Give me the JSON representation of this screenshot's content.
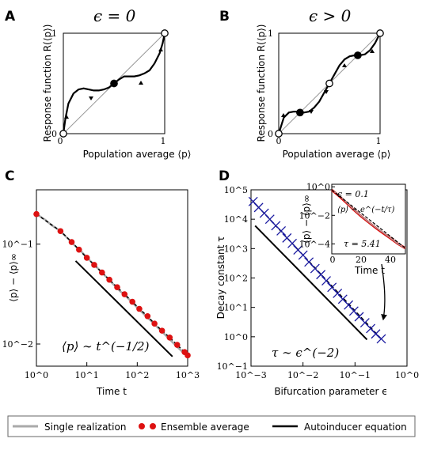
{
  "panels": {
    "A": {
      "letter": "A",
      "title": "ϵ = 0",
      "xlabel": "Population average ⟨p⟩",
      "ylabel": "Response function R(⟨p⟩)",
      "xticks": [
        "0",
        "1"
      ],
      "yticks": [
        "0",
        "1"
      ]
    },
    "B": {
      "letter": "B",
      "title": "ϵ > 0",
      "xlabel": "Population average ⟨p⟩",
      "ylabel": "Response function R(⟨p⟩)",
      "xticks": [
        "0",
        "1"
      ],
      "yticks": [
        "0",
        "1"
      ]
    },
    "C": {
      "letter": "C",
      "xlabel": "Time t",
      "ylabel": "⟨p⟩ − ⟨p⟩∞",
      "annotation": "⟨p⟩ ∼ t^(−1/2)",
      "xticks": [
        "10^0",
        "10^1",
        "10^2",
        "10^3"
      ],
      "yticks": [
        "10^−2",
        "10^−1"
      ]
    },
    "D": {
      "letter": "D",
      "xlabel": "Bifurcation parameter ϵ",
      "ylabel": "Decay constant τ",
      "annotation": "τ ∼ ϵ^(−2)",
      "xticks": [
        "10^−3",
        "10^−2",
        "10^−1",
        "10^0"
      ],
      "yticks": [
        "10^−1",
        "10^0",
        "10^1",
        "10^2",
        "10^3",
        "10^4",
        "10^5"
      ],
      "inset": {
        "xlabel": "Time t",
        "ylabel": "⟨p⟩ − ⟨p⟩∞",
        "eps_text": "ϵ = 0.1",
        "fit_text": "⟨p⟩ ∼ e^(−t/τ)",
        "tau_text": "τ = 5.41",
        "xticks": [
          "0",
          "20",
          "40"
        ],
        "yticks": [
          "10^0",
          "10^−2",
          "10^−4"
        ]
      }
    }
  },
  "legend": {
    "single": "Single realization",
    "ensemble": "Ensemble average",
    "autoinducer": "Autoinducer equation"
  },
  "colors": {
    "single": "#aaaaaa",
    "ensemble": "#dd1111",
    "autoinducer": "#000000",
    "markers": "#1a1aa0"
  },
  "chart_data": [
    {
      "type": "line",
      "panel": "A",
      "title": "ϵ = 0",
      "xlabel": "Population average ⟨p⟩",
      "ylabel": "Response function R(⟨p⟩)",
      "xlim": [
        0,
        1
      ],
      "ylim": [
        0,
        1
      ],
      "curve": {
        "x": [
          0.0,
          0.02,
          0.05,
          0.1,
          0.15,
          0.2,
          0.25,
          0.3,
          0.35,
          0.4,
          0.45,
          0.5,
          0.55,
          0.6,
          0.65,
          0.7,
          0.75,
          0.8,
          0.85,
          0.9,
          0.95,
          0.98,
          1.0
        ],
        "y": [
          0.0,
          0.15,
          0.3,
          0.4,
          0.44,
          0.45,
          0.44,
          0.43,
          0.43,
          0.44,
          0.46,
          0.5,
          0.54,
          0.57,
          0.57,
          0.57,
          0.58,
          0.6,
          0.63,
          0.7,
          0.8,
          0.9,
          1.0
        ]
      },
      "fixed_points": [
        {
          "x": 0.0,
          "y": 0.0,
          "stable": false
        },
        {
          "x": 0.5,
          "y": 0.5,
          "stable": true
        },
        {
          "x": 1.0,
          "y": 1.0,
          "stable": false
        }
      ]
    },
    {
      "type": "line",
      "panel": "B",
      "title": "ϵ > 0",
      "xlabel": "Population average ⟨p⟩",
      "ylabel": "Response function R(⟨p⟩)",
      "xlim": [
        0,
        1
      ],
      "ylim": [
        0,
        1
      ],
      "curve": {
        "x": [
          0.0,
          0.05,
          0.1,
          0.15,
          0.2,
          0.25,
          0.3,
          0.35,
          0.4,
          0.45,
          0.5,
          0.55,
          0.6,
          0.65,
          0.7,
          0.75,
          0.8,
          0.85,
          0.9,
          0.95,
          1.0
        ],
        "y": [
          0.0,
          0.16,
          0.21,
          0.22,
          0.22,
          0.21,
          0.22,
          0.26,
          0.32,
          0.41,
          0.5,
          0.59,
          0.68,
          0.74,
          0.77,
          0.78,
          0.78,
          0.79,
          0.83,
          0.9,
          1.0
        ]
      },
      "fixed_points": [
        {
          "x": 0.0,
          "y": 0.0,
          "stable": false
        },
        {
          "x": 0.21,
          "y": 0.21,
          "stable": true
        },
        {
          "x": 0.5,
          "y": 0.5,
          "stable": false
        },
        {
          "x": 0.78,
          "y": 0.78,
          "stable": true
        },
        {
          "x": 1.0,
          "y": 1.0,
          "stable": false
        }
      ]
    },
    {
      "type": "line",
      "panel": "C",
      "xlabel": "Time t",
      "ylabel": "⟨p⟩ − ⟨p⟩∞",
      "xscale": "log",
      "yscale": "log",
      "xlim": [
        1,
        1000
      ],
      "ylim": [
        0.006,
        0.35
      ],
      "series": [
        {
          "name": "Single realization",
          "x": [
            1,
            1.5,
            2,
            3,
            4.5,
            6,
            8,
            11,
            15,
            20,
            30,
            45,
            60,
            80,
            110,
            150,
            200,
            300,
            450,
            600,
            800,
            1000
          ],
          "y": [
            0.2,
            0.175,
            0.155,
            0.135,
            0.11,
            0.095,
            0.083,
            0.07,
            0.06,
            0.052,
            0.042,
            0.034,
            0.03,
            0.026,
            0.022,
            0.019,
            0.0165,
            0.0135,
            0.011,
            0.0095,
            0.0083,
            0.0075
          ]
        },
        {
          "name": "Ensemble average",
          "x": [
            1,
            3,
            5,
            7,
            10,
            14,
            20,
            28,
            40,
            56,
            80,
            110,
            160,
            220,
            310,
            440,
            620,
            870,
            1000
          ],
          "y": [
            0.2,
            0.135,
            0.105,
            0.088,
            0.073,
            0.062,
            0.052,
            0.044,
            0.037,
            0.0315,
            0.0265,
            0.0225,
            0.019,
            0.016,
            0.0136,
            0.0116,
            0.0098,
            0.0083,
            0.0077
          ]
        },
        {
          "name": "Autoinducer equation",
          "x": [
            6,
            500
          ],
          "y": [
            0.068,
            0.0075
          ]
        }
      ]
    },
    {
      "type": "scatter",
      "panel": "D",
      "xlabel": "Bifurcation parameter ϵ",
      "ylabel": "Decay constant τ",
      "xscale": "log",
      "yscale": "log",
      "xlim": [
        0.001,
        1
      ],
      "ylim": [
        0.1,
        100000
      ],
      "series": [
        {
          "name": "Simulations",
          "x": [
            0.0011,
            0.0014,
            0.0018,
            0.0023,
            0.003,
            0.0038,
            0.0049,
            0.0062,
            0.008,
            0.01,
            0.013,
            0.017,
            0.022,
            0.028,
            0.036,
            0.046,
            0.058,
            0.075,
            0.095,
            0.12,
            0.155,
            0.2,
            0.25,
            0.32
          ],
          "y": [
            40000,
            25000,
            16000,
            10000,
            6000,
            4000,
            2300,
            1500,
            900,
            600,
            350,
            210,
            130,
            80,
            48,
            30,
            19,
            12,
            7.5,
            4.8,
            3.0,
            1.9,
            1.25,
            0.85
          ]
        },
        {
          "name": "Fit",
          "x": [
            0.0011,
            0.32
          ],
          "y": [
            40000,
            0.85
          ]
        },
        {
          "name": "Autoinducer equation",
          "x": [
            0.0012,
            0.17
          ],
          "y": [
            6000,
            0.8
          ]
        }
      ],
      "inset": {
        "type": "line",
        "xlabel": "Time t",
        "ylabel": "⟨p⟩ − ⟨p⟩∞",
        "xlim": [
          0,
          50
        ],
        "ylim": [
          2e-05,
          1.5
        ],
        "yscale": "log",
        "series": [
          {
            "name": "Single realization",
            "x": [
              0,
              5,
              10,
              15,
              20,
              25,
              30,
              35,
              40,
              45,
              50
            ],
            "y": [
              0.6,
              0.25,
              0.08,
              0.025,
              0.009,
              0.0035,
              0.0014,
              0.0006,
              0.00025,
              0.0001,
              5e-05
            ]
          },
          {
            "name": "Ensemble average",
            "x": [
              0,
              5,
              10,
              15,
              20,
              25,
              30,
              35,
              40,
              45,
              50
            ],
            "y": [
              0.6,
              0.22,
              0.075,
              0.024,
              0.0085,
              0.0033,
              0.0013,
              0.00055,
              0.00024,
              0.0001,
              5e-05
            ]
          },
          {
            "name": "Autoinducer equation",
            "x": [
              0,
              50
            ],
            "y": [
              0.6,
              5e-05
            ]
          }
        ]
      }
    }
  ]
}
